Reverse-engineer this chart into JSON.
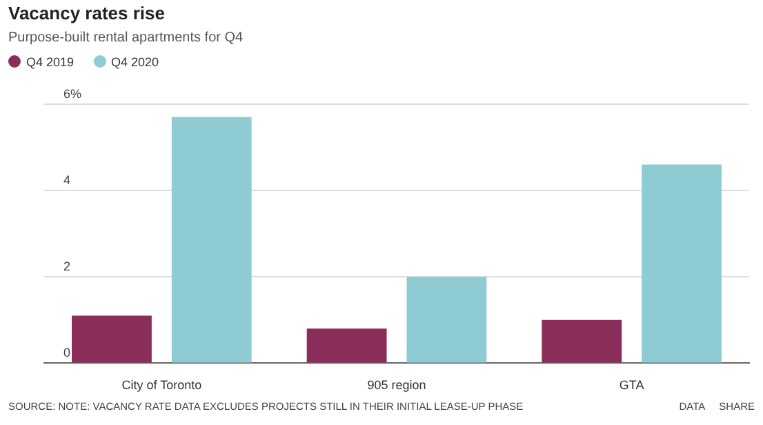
{
  "chart_data": {
    "type": "bar",
    "title": "Vacancy rates rise",
    "subtitle": "Purpose-built rental apartments for Q4",
    "categories": [
      "City of Toronto",
      "905 region",
      "GTA"
    ],
    "series": [
      {
        "name": "Q4 2019",
        "color": "#8b2d5a",
        "values": [
          1.1,
          0.8,
          1.0
        ]
      },
      {
        "name": "Q4 2020",
        "color": "#8ecbd3",
        "values": [
          5.7,
          2.0,
          4.6
        ]
      }
    ],
    "ylim": [
      0,
      6
    ],
    "yticks": [
      0,
      2,
      4,
      {
        "value": 6,
        "label": "6%"
      }
    ],
    "grid": "y",
    "legend": "top left",
    "annotations": [
      "SOURCE: NOTE: VACANCY RATE DATA EXCLUDES PROJECTS STILL IN THEIR INITIAL LEASE-UP PHASE",
      "DATA",
      "SHARE"
    ]
  }
}
